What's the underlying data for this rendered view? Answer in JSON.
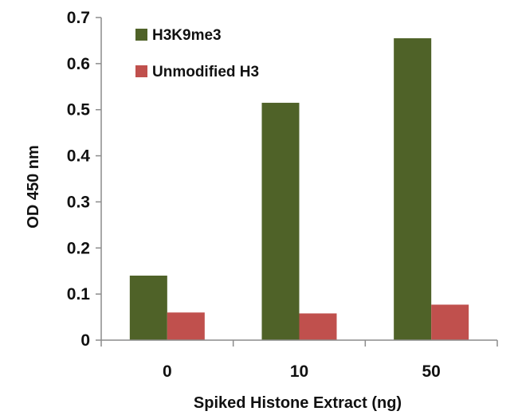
{
  "chart_data": {
    "type": "bar",
    "title": "",
    "xlabel": "Spiked Histone Extract (ng)",
    "ylabel": "OD 450 nm",
    "categories": [
      "0",
      "10",
      "50"
    ],
    "series": [
      {
        "name": "H3K9me3",
        "values": [
          0.14,
          0.515,
          0.655
        ],
        "color": "#4f6228"
      },
      {
        "name": "Unmodified H3",
        "values": [
          0.06,
          0.058,
          0.077
        ],
        "color": "#c0504d"
      }
    ],
    "ylim": [
      0,
      0.7
    ],
    "yticks": [
      "0",
      "0.1",
      "0.2",
      "0.3",
      "0.4",
      "0.5",
      "0.6",
      "0.7"
    ],
    "grid": false,
    "legend_position": "top-left"
  }
}
